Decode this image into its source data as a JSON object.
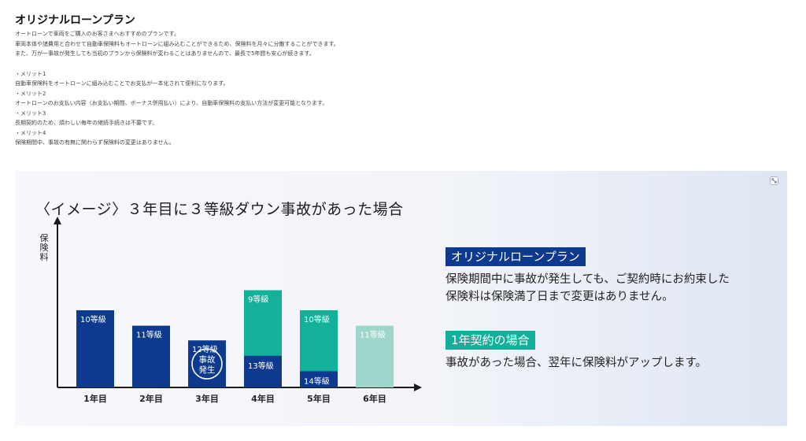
{
  "intro": {
    "title": "オリジナルローンプラン",
    "lines": [
      "オートローンで車両をご購入のお客さまへおすすめのプランです。",
      "車両本体や諸費用と合わせて自動車保険料もオートローンに組み込むことができるため、保険料を月々に分散することができます。",
      "また、万が一事故が発生しても当初のプランから保険料が変わることはありませんので、最長で5年間も安心が続きます。"
    ],
    "merits": [
      {
        "heading": "・メリット1",
        "text": "自動車保険料をオートローンに組み込むことでお支払が一本化されて便利になります。"
      },
      {
        "heading": "・メリット2",
        "text": "オートローンのお支払い内容（お支払い期間、ボーナス併用払い）により、自動車保険料の支払い方法が変更可能となります。"
      },
      {
        "heading": "・メリット3",
        "text": "長期契約のため、煩わしい毎年の継続手続きは不要です。"
      },
      {
        "heading": "・メリット4",
        "text": "保険期間中、事故の有無に関わらず保険料の変更はありません。"
      }
    ]
  },
  "panel": {
    "expand_icon": "expand-icon",
    "title": "〈イメージ〉３年目に３等級ダウン事故があった場合",
    "ylabel": "保険料",
    "plan_badge": "オリジナルローンプラン",
    "plan_desc_1": "保険期間中に事故が発生しても、ご契約時にお約束した",
    "plan_desc_2": "保険料は保険満了日まで変更はありません。",
    "annual_badge": "1年契約の場合",
    "annual_desc": "事故があった場合、翌年に保険料がアップします。"
  },
  "chart_data": {
    "type": "bar",
    "categories": [
      "1年目",
      "2年目",
      "3年目",
      "4年目",
      "5年目",
      "6年目"
    ],
    "accident_label": "事故発生",
    "accident_year_index": 2,
    "colors": {
      "plan": "#0d3a8f",
      "annual": "#13b09a",
      "annual_light": "#9dd6cb",
      "accident_ring": "#ffffff"
    },
    "bars": [
      {
        "label": "10等級",
        "value": 100,
        "segment": "plan"
      },
      {
        "label": "11等級",
        "value": 80,
        "segment": "plan"
      },
      {
        "label": "12等級",
        "value": 61,
        "segment": "plan"
      },
      {
        "label": "9等級",
        "value": 126,
        "segment": "annual",
        "inner_label": "13等級",
        "inner_value": 41
      },
      {
        "label": "10等級",
        "value": 100,
        "segment": "annual",
        "inner_label": "14等級",
        "inner_value": 21
      },
      {
        "label": "11等級",
        "value": 80,
        "segment": "annual_light"
      }
    ]
  }
}
